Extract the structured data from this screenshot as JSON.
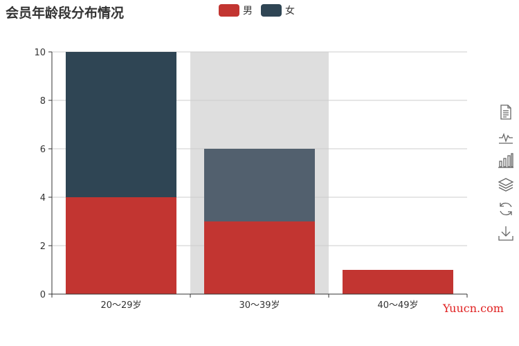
{
  "chart_data": {
    "type": "bar",
    "title": "会员年龄段分布情况",
    "categories": [
      "20～29岁",
      "30～39岁",
      "40～49岁"
    ],
    "series": [
      {
        "name": "男",
        "values": [
          4,
          3,
          1
        ],
        "color": "#c23531"
      },
      {
        "name": "女",
        "values": [
          6,
          3,
          0
        ],
        "color": "#2f4554"
      }
    ],
    "stacked": true,
    "ylim": [
      0,
      10
    ],
    "yticks": [
      0,
      2,
      4,
      6,
      8,
      10
    ],
    "grid": true,
    "highlighted_category": "30～39岁",
    "legend_position": "top-center"
  },
  "toolbox": {
    "tools": [
      {
        "name": "data-view-icon"
      },
      {
        "name": "line-chart-icon"
      },
      {
        "name": "bar-chart-icon"
      },
      {
        "name": "stack-icon"
      },
      {
        "name": "restore-icon"
      },
      {
        "name": "save-image-icon"
      }
    ]
  },
  "watermark": "Yuucn.com"
}
